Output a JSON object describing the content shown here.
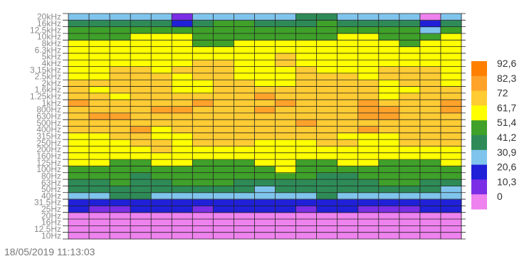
{
  "timestamp": "18/05/2019 11:13:03",
  "chart_data": {
    "type": "heatmap",
    "title": "",
    "xlabel": "",
    "ylabel": "",
    "y_ticks": [
      "10Hz",
      "12.5Hz",
      "16Hz",
      "20Hz",
      "25Hz",
      "31.5Hz",
      "40Hz",
      "50Hz",
      "63Hz",
      "80Hz",
      "100Hz",
      "125Hz",
      "160Hz",
      "200Hz",
      "250Hz",
      "315Hz",
      "400Hz",
      "500Hz",
      "630Hz",
      "800Hz",
      "1kHz",
      "1.25kHz",
      "1.6kHz",
      "2kHz",
      "2.5kHz",
      "3.15kHz",
      "4kHz",
      "5kHz",
      "6.3kHz",
      "8kHz",
      "10kHz",
      "12.5kHz",
      "16kHz",
      "20kHz"
    ],
    "legend_levels": [
      "92,6",
      "82,3",
      "72",
      "61,7",
      "51,4",
      "41,2",
      "30,9",
      "20,6",
      "10,3",
      "0"
    ],
    "color_bands": [
      "#ee82ee",
      "#7b2ee6",
      "#2020d8",
      "#7fc4ec",
      "#2e8b57",
      "#3fa02a",
      "#ffff00",
      "#ffcc33",
      "#ffa22a",
      "#ff8000"
    ],
    "column_count": 19,
    "level_profile_dB": [
      0,
      0,
      0,
      0,
      22,
      26,
      38,
      44,
      50,
      55,
      58,
      62,
      66,
      68,
      72,
      74,
      76,
      78,
      80,
      80,
      78,
      76,
      74,
      73,
      72,
      72,
      70,
      68,
      66,
      64,
      60,
      56,
      50,
      38
    ],
    "hotspots": [
      {
        "column": 0,
        "band": "1kHz",
        "level": 83
      },
      {
        "column": 6,
        "band": "1kHz",
        "level": 83
      },
      {
        "column": 9,
        "band": "800Hz",
        "level": 85
      },
      {
        "column": 9,
        "band": "1.25kHz",
        "level": 84
      },
      {
        "column": 10,
        "band": "1kHz",
        "level": 84
      },
      {
        "column": 14,
        "band": "1kHz",
        "level": 83
      },
      {
        "column": 3,
        "band": "400Hz",
        "level": 83
      },
      {
        "column": 14,
        "band": "400Hz",
        "level": 83
      }
    ],
    "dips": [
      {
        "column": 5,
        "band": "20kHz",
        "level": 18
      },
      {
        "column": 5,
        "band": "16kHz",
        "level": 30
      },
      {
        "column": 17,
        "band": "20kHz",
        "level": 10
      },
      {
        "column": 17,
        "band": "16kHz",
        "level": 25
      },
      {
        "column": 17,
        "band": "12.5kHz",
        "level": 40
      },
      {
        "column": 17,
        "band": "10kHz",
        "level": 52
      }
    ]
  }
}
